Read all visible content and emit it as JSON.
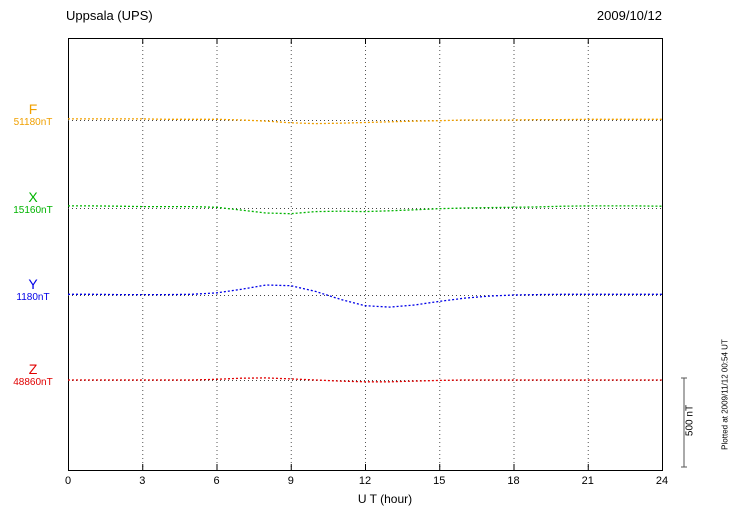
{
  "header": {
    "station": "Uppsala (UPS)",
    "date": "2009/10/12"
  },
  "axis": {
    "xlabel": "U T (hour)"
  },
  "scale": {
    "label": "500 nT",
    "value_nT": 500
  },
  "credit": {
    "plotted_at": "Plotted at 2009/11/12 00:54 UT"
  },
  "chart_data": {
    "type": "line",
    "title": "Uppsala (UPS)",
    "date": "2009/10/12",
    "xlabel": "U T (hour)",
    "x_range": [
      0,
      24
    ],
    "x_ticks": [
      0,
      3,
      6,
      9,
      12,
      15,
      18,
      21,
      24
    ],
    "grid": "dotted-vertical-at-3h",
    "scale_bar_nT": 500,
    "series": [
      {
        "name": "F",
        "baseline_label": "51180nT",
        "baseline_value_nT": 51180,
        "color": "#F0A000",
        "x_hours": [
          0,
          1,
          2,
          3,
          4,
          5,
          6,
          7,
          8,
          9,
          10,
          11,
          12,
          13,
          14,
          15,
          16,
          17,
          18,
          19,
          20,
          21,
          22,
          23,
          24
        ],
        "deviations_nT": [
          3,
          3,
          3,
          3,
          2,
          2,
          2,
          0,
          -3,
          -8,
          -10,
          -9,
          -7,
          -5,
          -3,
          -2,
          0,
          0,
          0,
          1,
          1,
          2,
          2,
          2,
          2
        ]
      },
      {
        "name": "X",
        "baseline_label": "15160nT",
        "baseline_value_nT": 15160,
        "color": "#00B400",
        "x_hours": [
          0,
          1,
          2,
          3,
          4,
          5,
          6,
          7,
          8,
          9,
          10,
          11,
          12,
          13,
          14,
          15,
          16,
          17,
          18,
          19,
          20,
          21,
          22,
          23,
          24
        ],
        "deviations_nT": [
          6,
          6,
          5,
          4,
          4,
          4,
          2,
          -6,
          -14,
          -16,
          -10,
          -9,
          -10,
          -8,
          -5,
          -2,
          0,
          1,
          2,
          3,
          5,
          6,
          6,
          6,
          5
        ]
      },
      {
        "name": "Y",
        "baseline_label": "1180nT",
        "baseline_value_nT": 1180,
        "color": "#0000E8",
        "x_hours": [
          0,
          1,
          2,
          3,
          4,
          5,
          6,
          7,
          8,
          9,
          10,
          11,
          12,
          13,
          14,
          15,
          16,
          17,
          18,
          19,
          20,
          21,
          22,
          23,
          24
        ],
        "deviations_nT": [
          2,
          2,
          1,
          1,
          1,
          2,
          6,
          16,
          28,
          26,
          10,
          -12,
          -30,
          -34,
          -28,
          -18,
          -9,
          -3,
          0,
          1,
          2,
          2,
          2,
          2,
          2
        ]
      },
      {
        "name": "Z",
        "baseline_label": "48860nT",
        "baseline_value_nT": 48860,
        "color": "#E00000",
        "x_hours": [
          0,
          1,
          2,
          3,
          4,
          5,
          6,
          7,
          8,
          9,
          10,
          11,
          12,
          13,
          14,
          15,
          16,
          17,
          18,
          19,
          20,
          21,
          22,
          23,
          24
        ],
        "deviations_nT": [
          0,
          0,
          0,
          0,
          0,
          0,
          2,
          5,
          6,
          3,
          0,
          -3,
          -5,
          -5,
          -3,
          -1,
          0,
          0,
          0,
          0,
          0,
          0,
          0,
          0,
          0
        ]
      }
    ]
  }
}
